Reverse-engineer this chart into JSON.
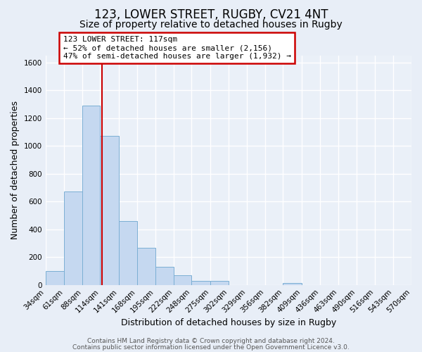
{
  "title": "123, LOWER STREET, RUGBY, CV21 4NT",
  "subtitle": "Size of property relative to detached houses in Rugby",
  "xlabel": "Distribution of detached houses by size in Rugby",
  "ylabel": "Number of detached properties",
  "bin_edges": [
    34,
    61,
    88,
    114,
    141,
    168,
    195,
    222,
    248,
    275,
    302,
    329,
    356,
    382,
    409,
    436,
    463,
    490,
    516,
    543,
    570
  ],
  "bar_heights": [
    100,
    670,
    1290,
    1070,
    460,
    265,
    130,
    70,
    30,
    30,
    0,
    0,
    0,
    15,
    0,
    0,
    0,
    0,
    0,
    0
  ],
  "bar_color": "#c5d8f0",
  "bar_edgecolor": "#7bafd4",
  "property_size": 117,
  "redline_color": "#cc0000",
  "annotation_line1": "123 LOWER STREET: 117sqm",
  "annotation_line2": "← 52% of detached houses are smaller (2,156)",
  "annotation_line3": "47% of semi-detached houses are larger (1,932) →",
  "annotation_boxcolor": "white",
  "annotation_edgecolor": "#cc0000",
  "ylim": [
    0,
    1650
  ],
  "yticks": [
    0,
    200,
    400,
    600,
    800,
    1000,
    1200,
    1400,
    1600
  ],
  "footer_line1": "Contains HM Land Registry data © Crown copyright and database right 2024.",
  "footer_line2": "Contains public sector information licensed under the Open Government Licence v3.0.",
  "bg_color": "#e8eef7",
  "plot_bg_color": "#eaf0f8",
  "grid_color": "white",
  "title_fontsize": 12,
  "subtitle_fontsize": 10,
  "axis_label_fontsize": 9,
  "tick_fontsize": 7.5,
  "annotation_fontsize": 8,
  "footer_fontsize": 6.5
}
